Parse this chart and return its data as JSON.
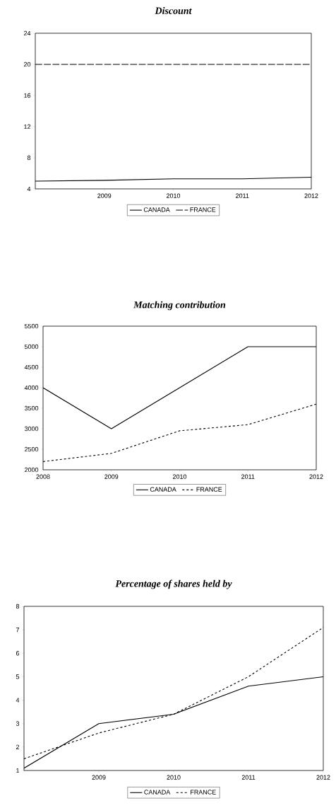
{
  "chart_data": [
    {
      "type": "line",
      "title": "Discount",
      "x": [
        2008,
        2009,
        2010,
        2011,
        2012
      ],
      "xlim": [
        2008,
        2012
      ],
      "xticks": [
        {
          "value": 2008,
          "label": null
        },
        2009,
        2010,
        2011,
        2012
      ],
      "ylim": [
        4,
        24
      ],
      "yticks": [
        4,
        8,
        12,
        16,
        20,
        24
      ],
      "legend": "bottom",
      "series": [
        {
          "name": "CANADA",
          "color": "#000000",
          "line_style": "solid",
          "values": [
            5.0,
            5.1,
            5.3,
            5.3,
            5.5
          ]
        },
        {
          "name": "FRANCE",
          "color": "#000000",
          "line_style": "dashed",
          "values": [
            20,
            20,
            20,
            20,
            20
          ]
        }
      ]
    },
    {
      "type": "line",
      "title": "Matching contribution",
      "x": [
        2008,
        2009,
        2010,
        2011,
        2012
      ],
      "xlim": [
        2008,
        2012
      ],
      "xticks": [
        2008,
        2009,
        2010,
        2011,
        2012
      ],
      "ylim": [
        2000,
        5500
      ],
      "yticks": [
        2000,
        2500,
        3000,
        3500,
        4000,
        4500,
        5000,
        5500
      ],
      "legend": "bottom",
      "series": [
        {
          "name": "CANADA",
          "color": "#000000",
          "line_style": "solid",
          "values": [
            4000,
            3000,
            4000,
            5000,
            5000
          ]
        },
        {
          "name": "FRANCE",
          "color": "#000000",
          "line_style": "dashed",
          "values": [
            2200,
            2400,
            2950,
            3100,
            3600
          ]
        }
      ]
    },
    {
      "type": "line",
      "title": "Percentage of shares held by",
      "x": [
        2008,
        2009,
        2010,
        2011,
        2012
      ],
      "xlim": [
        2008,
        2012
      ],
      "xticks": [
        {
          "value": 2008,
          "label": null
        },
        2009,
        2010,
        2011,
        2012
      ],
      "ylim": [
        1,
        8
      ],
      "yticks": [
        1,
        2,
        3,
        4,
        5,
        6,
        7,
        8
      ],
      "legend": "bottom",
      "series": [
        {
          "name": "CANADA",
          "color": "#000000",
          "line_style": "solid",
          "values": [
            1.1,
            3.0,
            3.4,
            4.6,
            5.0
          ]
        },
        {
          "name": "FRANCE",
          "color": "#000000",
          "line_style": "dashed",
          "values": [
            1.5,
            2.6,
            3.4,
            5.0,
            7.1
          ]
        }
      ]
    }
  ]
}
